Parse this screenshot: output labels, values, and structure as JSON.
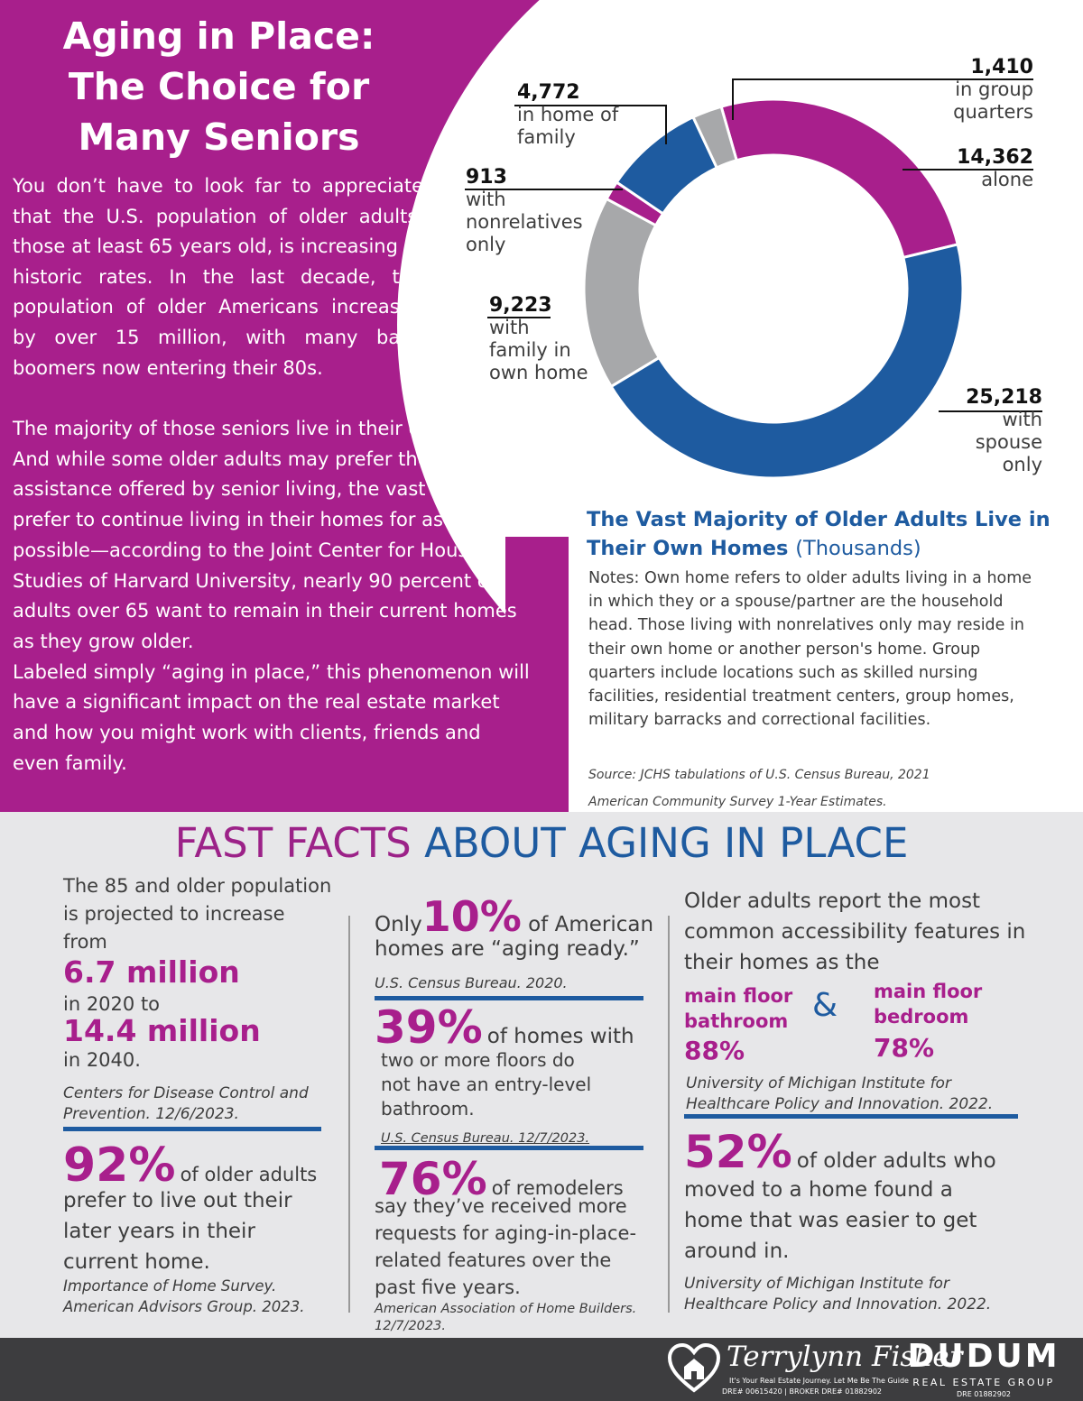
{
  "header": {
    "title_lines": [
      "Aging in Place:",
      "The Choice for",
      "Many Seniors"
    ]
  },
  "intro": {
    "p1": "You don’t have to look far to appreciate that the U.S. population of older adults, those at least 65 years old, is increasing at historic rates. In the last decade, the population of older Americans increased by over 15 million, with many baby boomers now entering their 80s.",
    "p2": "The majority of those seniors live in their own homes. And while some older adults may prefer the assistance offered by senior living, the vast majority prefer to continue living in their homes for as long as possible—according to the Joint Center for Housing Studies of Harvard University, nearly 90 percent of adults over 65 want to remain in their current homes as they grow older.",
    "p3": "Labeled simply “aging in place,” this phenomenon will have a significant impact on the real estate market and how you might work with clients, friends and even family."
  },
  "chart_data": {
    "type": "pie",
    "donut": true,
    "title": "The Vast Majority of Older Adults Live in Their Own Homes",
    "unit": "(Thousands)",
    "slices": [
      {
        "value": 14362,
        "value_label": "14,362",
        "label": "alone",
        "color": "#a81f8c"
      },
      {
        "value": 25218,
        "value_label": "25,218",
        "label": "with spouse only",
        "color": "#1e5ba0"
      },
      {
        "value": 9223,
        "value_label": "9,223",
        "label": "with family in own home",
        "color": "#a7a8aa"
      },
      {
        "value": 913,
        "value_label": "913",
        "label": "with nonrelatives only",
        "color": "#a81f8c"
      },
      {
        "value": 4772,
        "value_label": "4,772",
        "label": "in home of family",
        "color": "#1e5ba0"
      },
      {
        "value": 1410,
        "value_label": "1,410",
        "label": "in group quarters",
        "color": "#a7a8aa"
      }
    ],
    "notes": "Notes: Own home refers to older adults living in a home in which they or a spouse/partner are the household head. Those living with nonrelatives only may reside in their own home or another person's home. Group quarters include locations such as skilled nursing facilities, residential treatment centers, group homes, military barracks and correctional facilities.",
    "source_lines": [
      "Source: JCHS tabulations of U.S. Census Bureau, 2021",
      "American Community Survey 1-Year Estimates."
    ]
  },
  "facts": {
    "title_a": "FAST FACTS",
    "title_b": "ABOUT AGING IN PLACE",
    "col1": {
      "lead": "The 85 and older population is projected to increase from",
      "v1": "6.7 million",
      "t1": "in 2020 to",
      "v2": "14.4 million",
      "t2": "in 2040.",
      "cite1": "Centers for Disease Control and Prevention. 12/6/2023.",
      "pct": "92%",
      "pct_text_a": "of older adults",
      "pct_text_b": "prefer to live out their later years in their current home.",
      "cite2": "Importance of Home Survey. American Advisors Group. 2023."
    },
    "col2": {
      "a_pre": "Only",
      "a_pct": "10%",
      "a_post": "of American",
      "a_line2": "homes are “aging ready.”",
      "a_cite": "U.S. Census Bureau. 2020.",
      "b_pct": "39%",
      "b_post": "of homes with",
      "b_rest": "two or more floors do not have an entry-level bathroom.",
      "b_cite": "U.S. Census Bureau. 12/7/2023.",
      "c_pct": "76%",
      "c_post": "of remodelers",
      "c_rest": "say they’ve received more requests for aging-in-place-related features over the past five years.",
      "c_cite": "American Association of Home Builders. 12/7/2023."
    },
    "col3": {
      "lead": "Older adults report the most common accessibility features in their homes as the",
      "f1_label": "main floor bathroom",
      "f1_pct": "88%",
      "amp": "&",
      "f2_label": "main floor bedroom",
      "f2_pct": "78%",
      "cite1": "University of Michigan Institute for Healthcare Policy and Innovation. 2022.",
      "pct": "52%",
      "pct_text_a": "of older adults who",
      "pct_text_b": "moved to a home found a home that was easier to get around in.",
      "cite2": "University of Michigan Institute for Healthcare Policy and Innovation. 2022."
    }
  },
  "footer": {
    "agent_name": "Terrylynn Fisher",
    "tagline": "It's Your Real Estate Journey. Let Me Be The Guide",
    "license": "DRE# 00615420 | BROKER DRE# 01882902",
    "brand": "DUDUM",
    "brand_sub": "REAL ESTATE GROUP",
    "brand_license": "DRE 01882902"
  },
  "colors": {
    "magenta": "#a81f8c",
    "blue": "#1e5ba0",
    "gray": "#a7a8aa",
    "footer": "#3d3d3f"
  }
}
